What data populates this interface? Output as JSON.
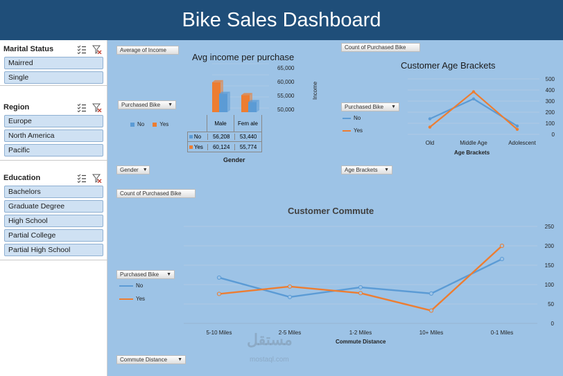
{
  "title": "Bike Sales Dashboard",
  "slicers": [
    {
      "title": "Marital Status",
      "items": [
        "Mairred",
        "Single"
      ]
    },
    {
      "title": "Region",
      "items": [
        "Europe",
        "North America",
        "Pacific"
      ]
    },
    {
      "title": "Education",
      "items": [
        "Bachelors",
        "Graduate Degree",
        "High School",
        "Partial College",
        "Partial High School"
      ]
    }
  ],
  "income_chart": {
    "value_button": "Average of Income",
    "legend_button": "Purchased Bike",
    "axis_button": "Gender",
    "title": "Avg income per purchase",
    "ylabel": "Income",
    "xlabel": "Gender",
    "yticks": [
      "65,000",
      "60,000",
      "55,000",
      "50,000"
    ],
    "legend": [
      "No",
      "Yes"
    ],
    "table_cols": [
      "Male",
      "Fem ale"
    ],
    "table_rows": [
      {
        "label": "No",
        "values": [
          "56,208",
          "53,440"
        ]
      },
      {
        "label": "Yes",
        "values": [
          "60,124",
          "55,774"
        ]
      }
    ]
  },
  "age_chart": {
    "value_button": "Count of Purchased Bike",
    "legend_button": "Purchased Bike",
    "axis_button": "Age Brackets",
    "title": "Customer Age Brackets",
    "xlabel": "Age Brackets",
    "yticks": [
      "500",
      "400",
      "300",
      "200",
      "100",
      "0"
    ],
    "legend": [
      "No",
      "Yes"
    ]
  },
  "commute_chart": {
    "value_button": "Count of Purchased Bike",
    "legend_button": "Purchased Bike",
    "axis_button": "Commute Distance",
    "title": "Customer Commute",
    "xlabel": "Commute Distance",
    "yticks": [
      "250",
      "200",
      "150",
      "100",
      "50",
      "0"
    ],
    "legend": [
      "No",
      "Yes"
    ]
  },
  "colors": {
    "no": "#5b9bd5",
    "yes": "#ed7d31",
    "header": "#1f4e79",
    "background": "#9dc3e6"
  },
  "watermark": "mostaql.com",
  "chart_data": [
    {
      "type": "bar",
      "title": "Avg income per purchase",
      "categories": [
        "Male",
        "Female"
      ],
      "series": [
        {
          "name": "No",
          "values": [
            56208,
            53440
          ]
        },
        {
          "name": "Yes",
          "values": [
            60124,
            55774
          ]
        }
      ],
      "xlabel": "Gender",
      "ylabel": "Income",
      "ylim": [
        50000,
        65000
      ]
    },
    {
      "type": "line",
      "title": "Customer Age Brackets",
      "categories": [
        "Old",
        "Middle Age",
        "Adolescent"
      ],
      "series": [
        {
          "name": "No",
          "values": [
            140,
            320,
            75
          ]
        },
        {
          "name": "Yes",
          "values": [
            65,
            385,
            45
          ]
        }
      ],
      "xlabel": "Age Brackets",
      "ylabel": "",
      "ylim": [
        0,
        500
      ]
    },
    {
      "type": "line",
      "title": "Customer Commute",
      "categories": [
        "5-10 Miles",
        "2-5 Miles",
        "1-2 Miles",
        "10+ Miles",
        "0-1 Miles"
      ],
      "series": [
        {
          "name": "No",
          "values": [
            118,
            68,
            93,
            77,
            166
          ]
        },
        {
          "name": "Yes",
          "values": [
            76,
            95,
            78,
            33,
            200
          ]
        }
      ],
      "xlabel": "Commute Distance",
      "ylabel": "",
      "ylim": [
        0,
        250
      ]
    }
  ]
}
